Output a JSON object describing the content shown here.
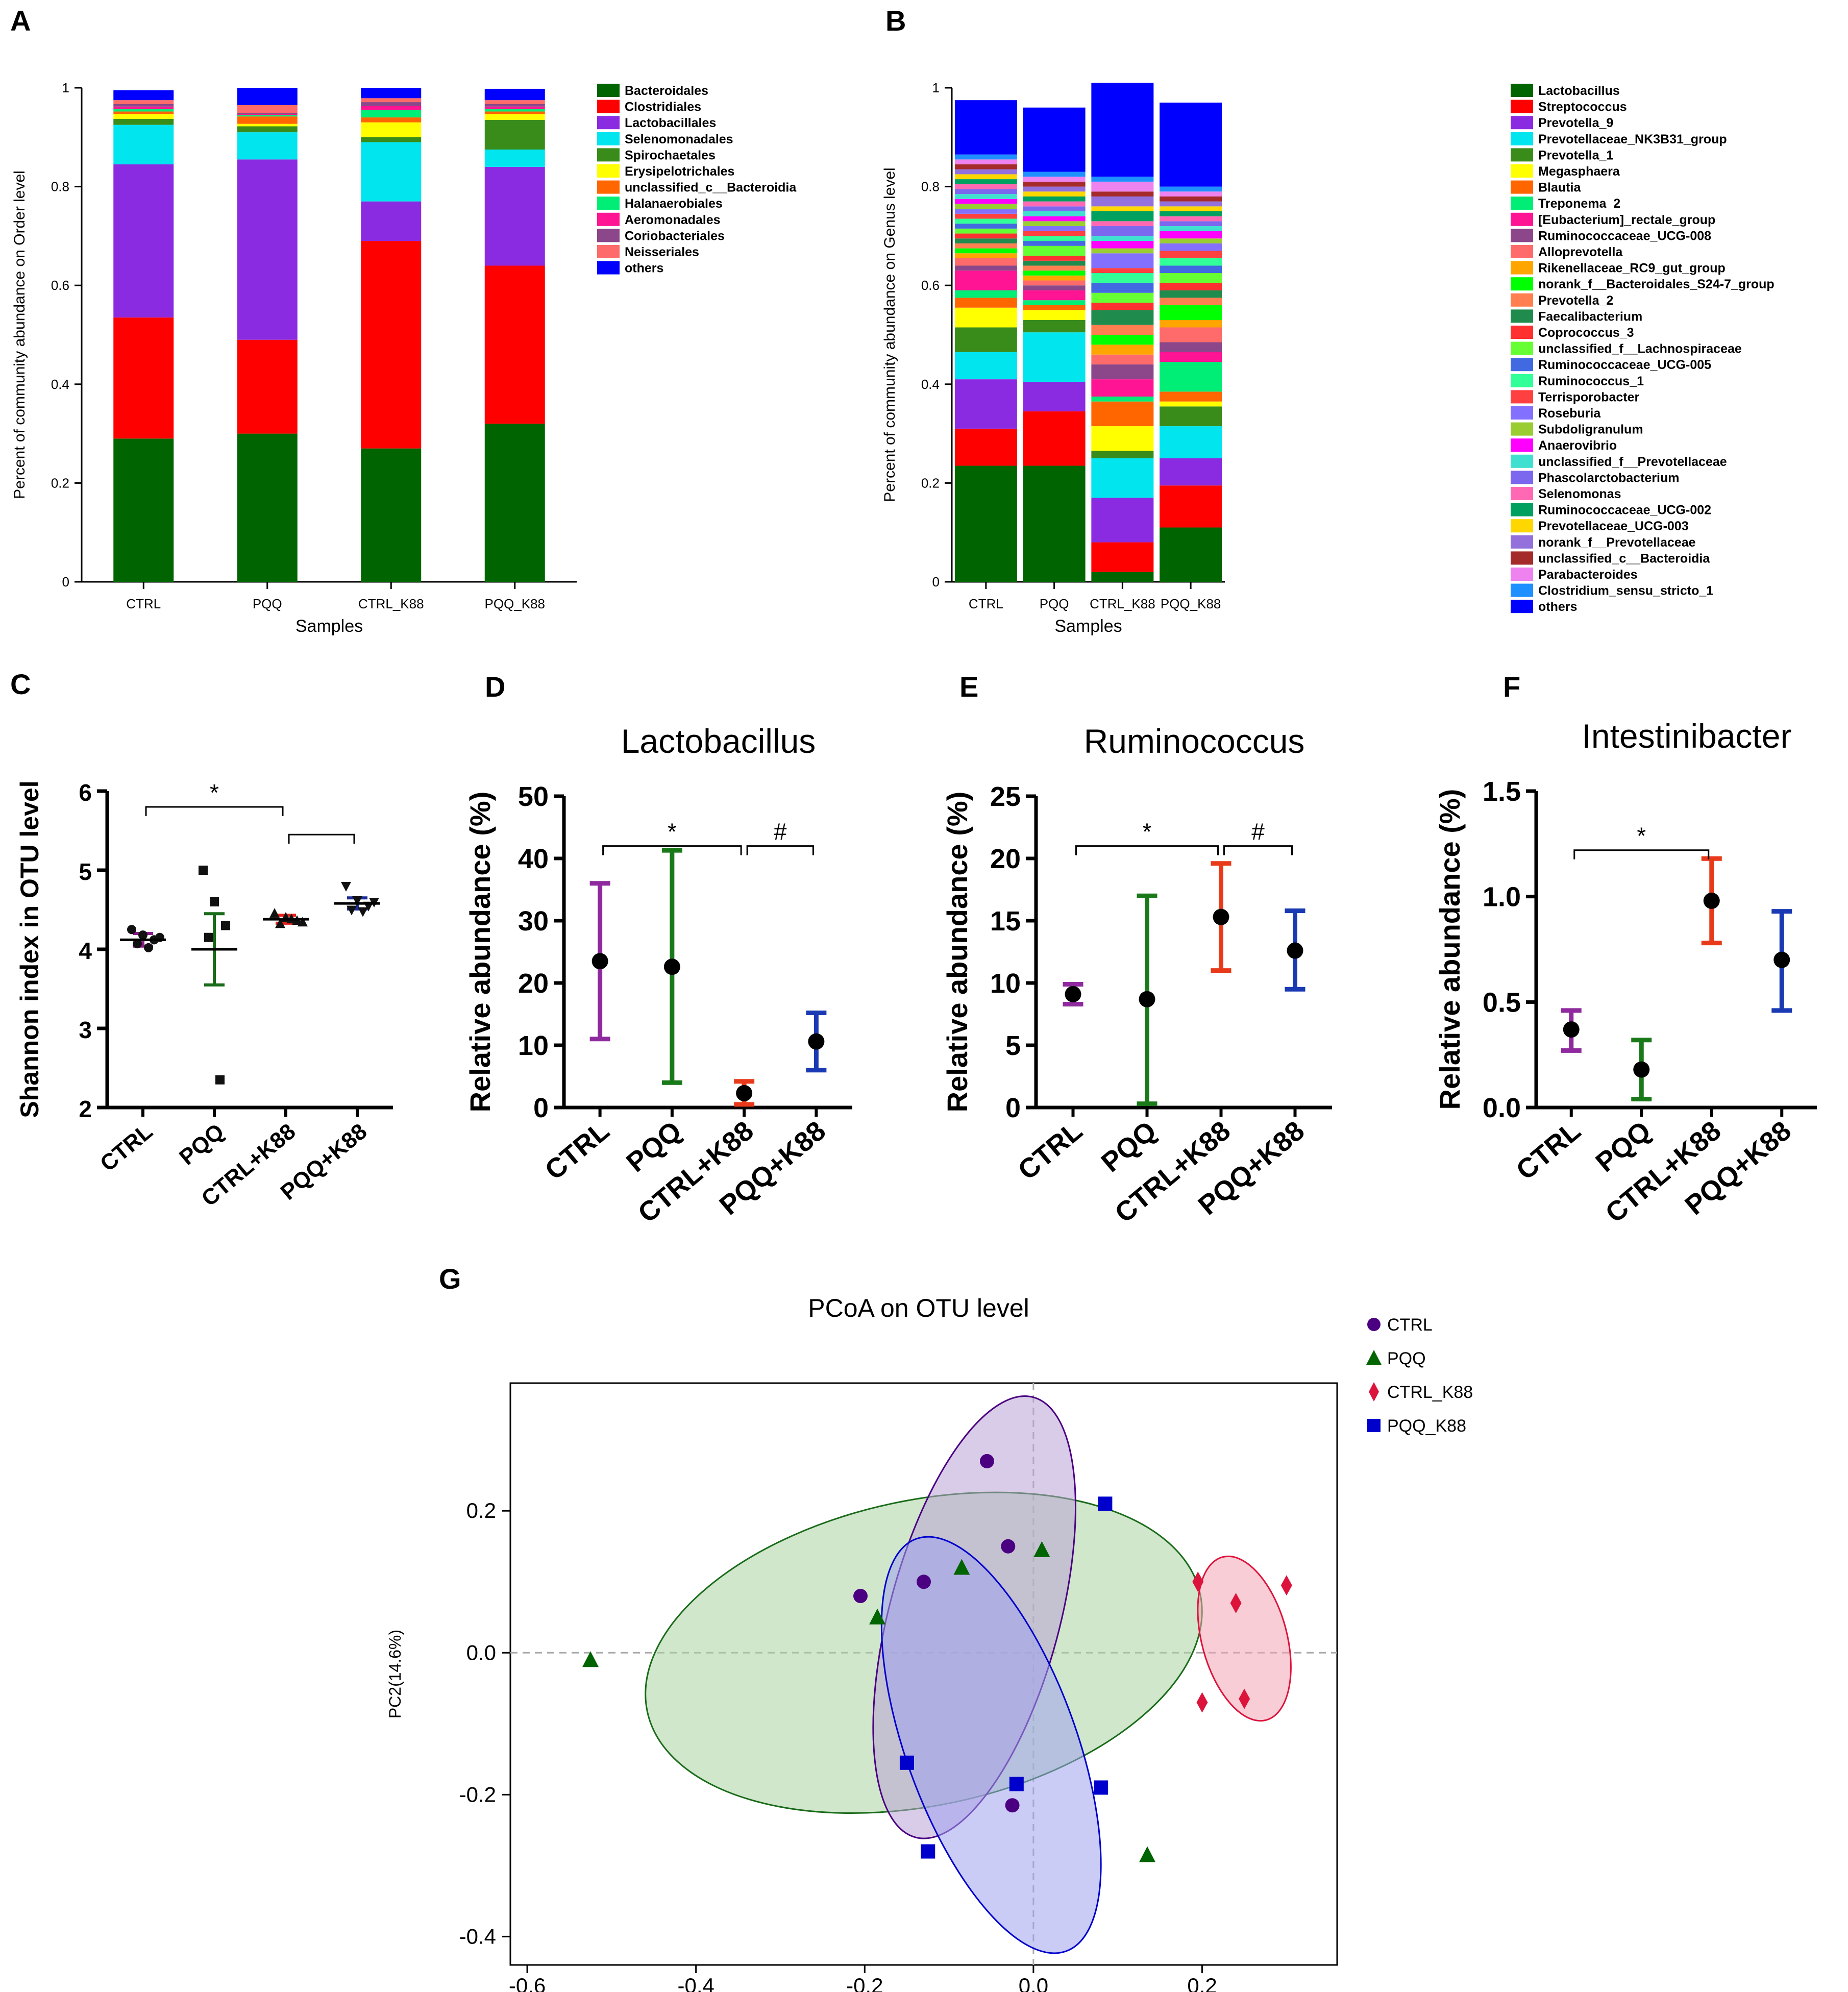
{
  "chart_data": [
    {
      "panel": "A",
      "type": "bar",
      "stacked": true,
      "xlabel": "Samples",
      "ylabel": "Percent of community abundance on Order level",
      "ylim": [
        0,
        1
      ],
      "yticks": [
        "0",
        "0.2",
        "0.4",
        "0.6",
        "0.8",
        "1"
      ],
      "categories": [
        "CTRL",
        "PQQ",
        "CTRL_K88",
        "PQQ_K88"
      ],
      "series": [
        {
          "name": "Bacteroidales",
          "color": "#006400",
          "values": [
            0.29,
            0.3,
            0.27,
            0.32
          ]
        },
        {
          "name": "Clostridiales",
          "color": "#ff0000",
          "values": [
            0.245,
            0.19,
            0.42,
            0.32
          ]
        },
        {
          "name": "Lactobacillales",
          "color": "#8a2be2",
          "values": [
            0.31,
            0.365,
            0.08,
            0.2
          ]
        },
        {
          "name": "Selenomonadales",
          "color": "#00e5ee",
          "values": [
            0.08,
            0.055,
            0.12,
            0.035
          ]
        },
        {
          "name": "Spirochaetales",
          "color": "#3a8c1a",
          "values": [
            0.012,
            0.012,
            0.01,
            0.06
          ]
        },
        {
          "name": "Erysipelotrichales",
          "color": "#ffff00",
          "values": [
            0.01,
            0.005,
            0.03,
            0.012
          ]
        },
        {
          "name": "unclassified_c__Bacteroidia",
          "color": "#ff6600",
          "values": [
            0.005,
            0.015,
            0.01,
            0.005
          ]
        },
        {
          "name": "Halanaerobiales",
          "color": "#00ee76",
          "values": [
            0.005,
            0.003,
            0.015,
            0.005
          ]
        },
        {
          "name": "Aeromonadales",
          "color": "#ff1493",
          "values": [
            0.005,
            0.002,
            0.008,
            0.005
          ]
        },
        {
          "name": "Coriobacteriales",
          "color": "#8b4789",
          "values": [
            0.005,
            0.002,
            0.008,
            0.005
          ]
        },
        {
          "name": "Neisseriales",
          "color": "#ff6a6a",
          "values": [
            0.008,
            0.016,
            0.008,
            0.008
          ]
        },
        {
          "name": "others",
          "color": "#0000ff",
          "values": [
            0.02,
            0.035,
            0.021,
            0.023
          ]
        }
      ]
    },
    {
      "panel": "B",
      "type": "bar",
      "stacked": true,
      "xlabel": "Samples",
      "ylabel": "Percent of community abundance on Genus level",
      "ylim": [
        0,
        1
      ],
      "yticks": [
        "0",
        "0.2",
        "0.4",
        "0.6",
        "0.8",
        "1"
      ],
      "categories": [
        "CTRL",
        "PQQ",
        "CTRL_K88",
        "PQQ_K88"
      ],
      "series": [
        {
          "name": "Lactobacillus",
          "color": "#006400",
          "values": [
            0.235,
            0.235,
            0.02,
            0.11
          ]
        },
        {
          "name": "Streptococcus",
          "color": "#ff0000",
          "values": [
            0.075,
            0.11,
            0.06,
            0.085
          ]
        },
        {
          "name": "Prevotella_9",
          "color": "#8a2be2",
          "values": [
            0.1,
            0.06,
            0.09,
            0.055
          ]
        },
        {
          "name": "Prevotellaceae_NK3B31_group",
          "color": "#00e5ee",
          "values": [
            0.055,
            0.1,
            0.08,
            0.065
          ]
        },
        {
          "name": "Prevotella_1",
          "color": "#3a8c1a",
          "values": [
            0.05,
            0.025,
            0.015,
            0.04
          ]
        },
        {
          "name": "Megasphaera",
          "color": "#ffff00",
          "values": [
            0.04,
            0.02,
            0.05,
            0.01
          ]
        },
        {
          "name": "Blautia",
          "color": "#ff6600",
          "values": [
            0.02,
            0.01,
            0.05,
            0.02
          ]
        },
        {
          "name": "Treponema_2",
          "color": "#00ee76",
          "values": [
            0.015,
            0.01,
            0.01,
            0.06
          ]
        },
        {
          "name": "[Eubacterium]_rectale_group",
          "color": "#ff1493",
          "values": [
            0.04,
            0.02,
            0.035,
            0.02
          ]
        },
        {
          "name": "Ruminococcaceae_UCG-008",
          "color": "#8b4789",
          "values": [
            0.01,
            0.01,
            0.03,
            0.02
          ]
        },
        {
          "name": "Alloprevotella",
          "color": "#ff6a6a",
          "values": [
            0.015,
            0.01,
            0.02,
            0.03
          ]
        },
        {
          "name": "Rikenellaceae_RC9_gut_group",
          "color": "#ffa500",
          "values": [
            0.01,
            0.01,
            0.02,
            0.015
          ]
        },
        {
          "name": "norank_f__Bacteroidales_S24-7_group",
          "color": "#00ff00",
          "values": [
            0.01,
            0.01,
            0.02,
            0.03
          ]
        },
        {
          "name": "Prevotella_2",
          "color": "#ff7f50",
          "values": [
            0.01,
            0.01,
            0.02,
            0.015
          ]
        },
        {
          "name": "Faecalibacterium",
          "color": "#1f8b4c",
          "values": [
            0.01,
            0.01,
            0.03,
            0.015
          ]
        },
        {
          "name": "Coprococcus_3",
          "color": "#ff3030",
          "values": [
            0.01,
            0.01,
            0.015,
            0.015
          ]
        },
        {
          "name": "unclassified_f__Lachnospiraceae",
          "color": "#66ff33",
          "values": [
            0.01,
            0.02,
            0.02,
            0.02
          ]
        },
        {
          "name": "Ruminococcaceae_UCG-005",
          "color": "#4169e1",
          "values": [
            0.01,
            0.01,
            0.02,
            0.015
          ]
        },
        {
          "name": "Ruminococcus_1",
          "color": "#33ff99",
          "values": [
            0.01,
            0.01,
            0.02,
            0.015
          ]
        },
        {
          "name": "Terrisporobacter",
          "color": "#ff4040",
          "values": [
            0.01,
            0.01,
            0.01,
            0.015
          ]
        },
        {
          "name": "Roseburia",
          "color": "#8470ff",
          "values": [
            0.01,
            0.01,
            0.03,
            0.015
          ]
        },
        {
          "name": "Subdoligranulum",
          "color": "#9acd32",
          "values": [
            0.01,
            0.01,
            0.01,
            0.01
          ]
        },
        {
          "name": "Anaerovibrio",
          "color": "#ff00ff",
          "values": [
            0.01,
            0.01,
            0.015,
            0.015
          ]
        },
        {
          "name": "unclassified_f__Prevotellaceae",
          "color": "#40e0d0",
          "values": [
            0.01,
            0.01,
            0.01,
            0.01
          ]
        },
        {
          "name": "Phascolarctobacterium",
          "color": "#7b68ee",
          "values": [
            0.01,
            0.01,
            0.02,
            0.01
          ]
        },
        {
          "name": "Selenomonas",
          "color": "#ff69b4",
          "values": [
            0.01,
            0.01,
            0.01,
            0.01
          ]
        },
        {
          "name": "Ruminococcaceae_UCG-002",
          "color": "#00a060",
          "values": [
            0.01,
            0.01,
            0.02,
            0.01
          ]
        },
        {
          "name": "Prevotellaceae_UCG-003",
          "color": "#ffd700",
          "values": [
            0.01,
            0.01,
            0.01,
            0.01
          ]
        },
        {
          "name": "norank_f__Prevotellaceae",
          "color": "#9370db",
          "values": [
            0.01,
            0.01,
            0.02,
            0.01
          ]
        },
        {
          "name": "unclassified_c__Bacteroidia",
          "color": "#a52a2a",
          "values": [
            0.01,
            0.01,
            0.01,
            0.01
          ]
        },
        {
          "name": "Parabacteroides",
          "color": "#ee82ee",
          "values": [
            0.01,
            0.01,
            0.02,
            0.01
          ]
        },
        {
          "name": "Clostridium_sensu_stricto_1",
          "color": "#1e90ff",
          "values": [
            0.01,
            0.01,
            0.01,
            0.01
          ]
        },
        {
          "name": "others",
          "color": "#0000ff",
          "values": [
            0.11,
            0.13,
            0.19,
            0.17
          ]
        }
      ]
    },
    {
      "panel": "C",
      "type": "scatter",
      "title": "",
      "xlabel": "",
      "ylabel": "Shannon index in OTU level",
      "ylim": [
        2,
        6
      ],
      "yticks": [
        "2",
        "3",
        "4",
        "5",
        "6"
      ],
      "categories": [
        "CTRL",
        "PQQ",
        "CTRL+K88",
        "PQQ+K88"
      ],
      "groups": [
        {
          "name": "CTRL",
          "color": "#8b1a8b",
          "marker": "circle",
          "mean": 4.12,
          "sem": 0.08,
          "points": [
            4.25,
            4.18,
            4.12,
            4.07,
            4.02,
            4.15
          ]
        },
        {
          "name": "PQQ",
          "color": "#1a6b1a",
          "marker": "square",
          "mean": 4.0,
          "sem": 0.45,
          "points": [
            5.0,
            4.6,
            4.3,
            4.15,
            2.35
          ]
        },
        {
          "name": "CTRL+K88",
          "color": "#e8211a",
          "marker": "triangle",
          "mean": 4.38,
          "sem": 0.05,
          "points": [
            4.45,
            4.4,
            4.36,
            4.32,
            4.38,
            4.34
          ]
        },
        {
          "name": "PQQ+K88",
          "color": "#1a2b99",
          "marker": "triangle-down",
          "mean": 4.58,
          "sem": 0.07,
          "points": [
            4.8,
            4.62,
            4.55,
            4.5,
            4.48,
            4.6
          ]
        }
      ],
      "significance": [
        {
          "from": 0,
          "to": 2,
          "label": "*",
          "y": 5.8
        },
        {
          "from": 2,
          "to": 3,
          "label": "",
          "y": 5.45
        }
      ]
    },
    {
      "panel": "D",
      "type": "scatter",
      "title": "Lactobacillus",
      "ylabel": "Relative abundance (%)",
      "ylim": [
        0,
        50
      ],
      "yticks": [
        "0",
        "10",
        "20",
        "30",
        "40",
        "50"
      ],
      "categories": [
        "CTRL",
        "PQQ",
        "CTRL+K88",
        "PQQ+K88"
      ],
      "groups": [
        {
          "name": "CTRL",
          "color": "#8e2a9e",
          "mean": 23.5,
          "low": 11,
          "high": 36
        },
        {
          "name": "PQQ",
          "color": "#1a7a1a",
          "mean": 22.6,
          "low": 4,
          "high": 41.3
        },
        {
          "name": "CTRL+K88",
          "color": "#e83a1a",
          "mean": 2.3,
          "low": 0.5,
          "high": 4.2
        },
        {
          "name": "PQQ+K88",
          "color": "#1a3ab4",
          "mean": 10.6,
          "low": 6,
          "high": 15.2
        }
      ],
      "significance": [
        {
          "from": 0,
          "to": 2,
          "label": "*",
          "y": 42
        },
        {
          "from": 2,
          "to": 3,
          "label": "#",
          "y": 42
        }
      ]
    },
    {
      "panel": "E",
      "type": "scatter",
      "title": "Ruminococcus",
      "ylabel": "Relative abundance (%)",
      "ylim": [
        0,
        25
      ],
      "yticks": [
        "0",
        "5",
        "10",
        "15",
        "20",
        "25"
      ],
      "categories": [
        "CTRL",
        "PQQ",
        "CTRL+K88",
        "PQQ+K88"
      ],
      "groups": [
        {
          "name": "CTRL",
          "color": "#8e2a9e",
          "mean": 9.1,
          "low": 8.3,
          "high": 9.9
        },
        {
          "name": "PQQ",
          "color": "#1a7a1a",
          "mean": 8.7,
          "low": 0.3,
          "high": 17
        },
        {
          "name": "CTRL+K88",
          "color": "#e83a1a",
          "mean": 15.3,
          "low": 11,
          "high": 19.6
        },
        {
          "name": "PQQ+K88",
          "color": "#1a3ab4",
          "mean": 12.6,
          "low": 9.5,
          "high": 15.8
        }
      ],
      "significance": [
        {
          "from": 0,
          "to": 2,
          "label": "*",
          "y": 21
        },
        {
          "from": 2,
          "to": 3,
          "label": "#",
          "y": 21
        }
      ]
    },
    {
      "panel": "F",
      "type": "scatter",
      "title": "Intestinibacter",
      "ylabel": "Relative abundance (%)",
      "ylim": [
        0,
        1.5
      ],
      "yticks": [
        "0.0",
        "0.5",
        "1.0",
        "1.5"
      ],
      "categories": [
        "CTRL",
        "PQQ",
        "CTRL+K88",
        "PQQ+K88"
      ],
      "groups": [
        {
          "name": "CTRL",
          "color": "#8e2a9e",
          "mean": 0.37,
          "low": 0.27,
          "high": 0.46
        },
        {
          "name": "PQQ",
          "color": "#1a7a1a",
          "mean": 0.18,
          "low": 0.04,
          "high": 0.32
        },
        {
          "name": "CTRL+K88",
          "color": "#e83a1a",
          "mean": 0.98,
          "low": 0.78,
          "high": 1.18
        },
        {
          "name": "PQQ+K88",
          "color": "#1a3ab4",
          "mean": 0.7,
          "low": 0.46,
          "high": 0.93
        }
      ],
      "significance": [
        {
          "from": 0,
          "to": 2,
          "label": "*",
          "y": 1.22
        }
      ]
    },
    {
      "panel": "G",
      "type": "scatter",
      "title": "PCoA on OTU level",
      "xlabel": "",
      "ylabel": "PC2(14.6%)",
      "xlim": [
        -0.62,
        0.36
      ],
      "ylim": [
        -0.44,
        0.38
      ],
      "xticks": [
        "-0.6",
        "-0.4",
        "-0.2",
        "0.0",
        "0.2"
      ],
      "yticks": [
        "-0.4",
        "-0.2",
        "0.0",
        "0.2"
      ],
      "series": [
        {
          "name": "CTRL",
          "color": "#4b0082",
          "marker": "circle",
          "x": [
            -0.055,
            -0.205,
            -0.13,
            -0.03,
            -0.025
          ],
          "y": [
            0.27,
            0.08,
            0.1,
            0.15,
            -0.215
          ]
        },
        {
          "name": "PQQ",
          "color": "#006400",
          "marker": "triangle",
          "x": [
            -0.525,
            -0.185,
            -0.085,
            0.01,
            0.135
          ],
          "y": [
            -0.01,
            0.05,
            0.12,
            0.145,
            -0.285
          ]
        },
        {
          "name": "CTRL_K88",
          "color": "#dc143c",
          "marker": "diamond",
          "x": [
            0.195,
            0.24,
            0.3,
            0.2,
            0.25
          ],
          "y": [
            0.1,
            0.07,
            0.095,
            -0.07,
            -0.065
          ]
        },
        {
          "name": "PQQ_K88",
          "color": "#0000cd",
          "marker": "square",
          "x": [
            0.085,
            -0.15,
            -0.02,
            0.08,
            -0.125
          ],
          "y": [
            0.21,
            -0.155,
            -0.185,
            -0.19,
            -0.28
          ]
        }
      ],
      "ellipses": [
        {
          "group": "PQQ",
          "cx": -0.13,
          "cy": 0.0,
          "rx": 0.335,
          "ry": 0.215,
          "angle": -12,
          "fill": "#a9d3a1",
          "stroke": "#1a6b1a"
        },
        {
          "group": "CTRL",
          "cx": -0.07,
          "cy": 0.05,
          "rx": 0.27,
          "ry": 0.12,
          "angle": -75,
          "fill": "#b9a3d6",
          "stroke": "#4b0082"
        },
        {
          "group": "PQQ_K88",
          "cx": -0.05,
          "cy": -0.13,
          "rx": 0.26,
          "ry": 0.12,
          "angle": 70,
          "fill": "#9fa3ef",
          "stroke": "#0000cd"
        },
        {
          "group": "CTRL_K88",
          "cx": 0.25,
          "cy": 0.02,
          "rx": 0.1,
          "ry": 0.06,
          "angle": 75,
          "fill": "#f2a4b4",
          "stroke": "#dc143c"
        }
      ]
    }
  ],
  "panel_labels": [
    "A",
    "B",
    "C",
    "D",
    "E",
    "F",
    "G"
  ]
}
